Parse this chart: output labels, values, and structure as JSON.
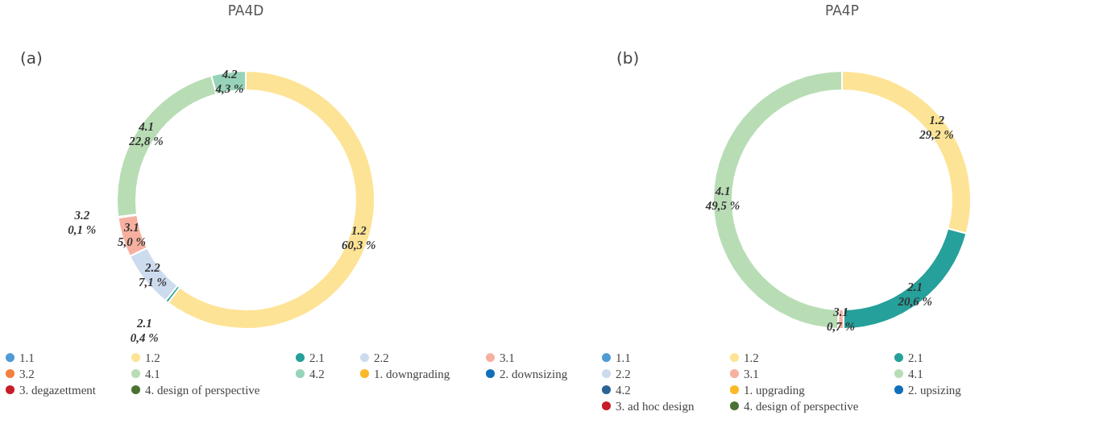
{
  "chart_data": [
    {
      "type": "donut",
      "title": "PA4D",
      "annotations": [
        "(a)"
      ],
      "legend": "bottom",
      "categories": [
        "1.1",
        "1.2",
        "2.1",
        "2.2",
        "3.1",
        "3.2",
        "4.1",
        "4.2",
        "1. downgrading",
        "2. downsizing",
        "3. degazettment",
        "4. design of perspective"
      ],
      "values": [
        0,
        60.3,
        0.4,
        7.1,
        5.0,
        0.1,
        22.8,
        4.3,
        0,
        0,
        0,
        0
      ],
      "value_labels": [
        null,
        "60,3 %",
        "0,4 %",
        "7,1 %",
        "5,0 %",
        "0,1 %",
        "22,8 %",
        "4,3 %",
        null,
        null,
        null,
        null
      ],
      "colors": [
        "#4e9bd6",
        "#fde395",
        "#26a09a",
        "#cddbee",
        "#f7b0a0",
        "#f47f3e",
        "#b8ddb5",
        "#97d3b8",
        "#fbb827",
        "#1170b9",
        "#c61d27",
        "#4a7234"
      ]
    },
    {
      "type": "donut",
      "title": "PA4P",
      "annotations": [
        "(b)"
      ],
      "legend": "bottom",
      "categories": [
        "1.1",
        "1.2",
        "2.1",
        "2.2",
        "3.1",
        "4.1",
        "4.2",
        "1. upgrading",
        "2. upsizing",
        "3. ad hoc design",
        "4. design of perspective"
      ],
      "values": [
        0,
        29.2,
        20.6,
        0,
        0.7,
        49.5,
        0,
        0,
        0,
        0,
        0
      ],
      "value_labels": [
        null,
        "29,2 %",
        "20,6 %",
        null,
        "0,7 %",
        "49,5 %",
        null,
        null,
        null,
        null,
        null
      ],
      "colors": [
        "#4e9bd6",
        "#fde395",
        "#26a09a",
        "#cddbee",
        "#f7b0a0",
        "#b8ddb5",
        "#2a6496",
        "#fbb827",
        "#1170b9",
        "#c61d27",
        "#4a7234"
      ]
    }
  ]
}
